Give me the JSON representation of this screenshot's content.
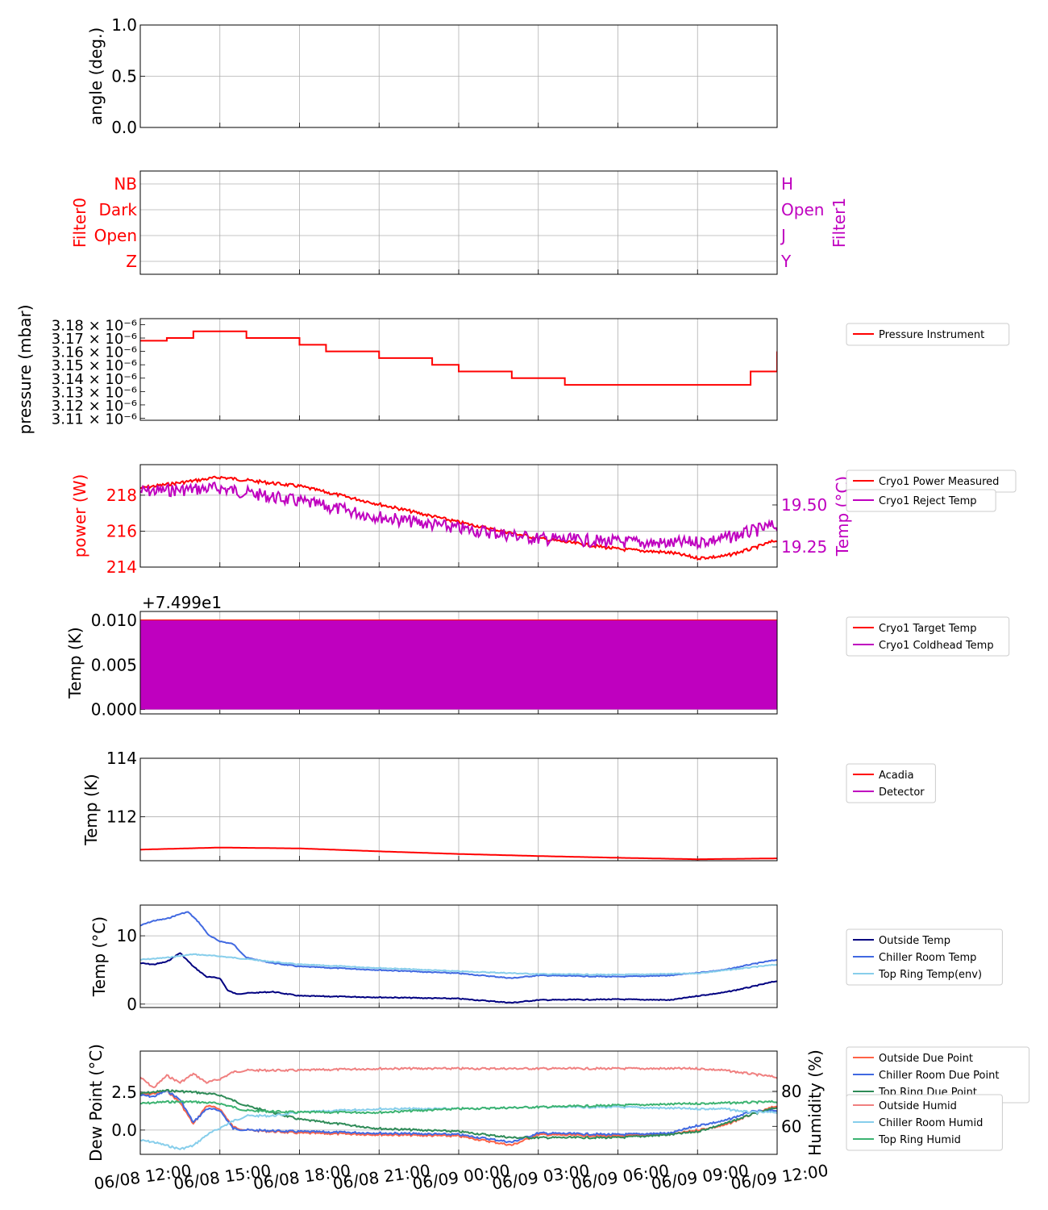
{
  "figure": {
    "x_ticks": [
      "06/08 12:00",
      "06/08 15:00",
      "06/08 18:00",
      "06/08 21:00",
      "06/09 00:00",
      "06/09 03:00",
      "06/09 06:00",
      "06/09 09:00",
      "06/09 12:00"
    ]
  },
  "chart_data": [
    {
      "type": "line",
      "panel": "angle",
      "ylabel": "angle (deg.)",
      "ylim": [
        0,
        1
      ],
      "yticks": [
        "0.0",
        "0.5",
        "1.0"
      ],
      "grid": true,
      "series": []
    },
    {
      "type": "line",
      "panel": "filters",
      "ylabel": "Filter0",
      "y2label": "Filter1",
      "yticks": [
        "Z",
        "Open",
        "Dark",
        "NB"
      ],
      "y2ticks": [
        "Y",
        "J",
        "Open",
        "H"
      ],
      "colors": {
        "left": "#ff0000",
        "right": "#bf00bf"
      },
      "grid": true,
      "series": []
    },
    {
      "type": "line",
      "panel": "pressure",
      "ylabel": "pressure (mbar)",
      "yticks": [
        "3.11 × 10⁻⁶",
        "3.12 × 10⁻⁶",
        "3.13 × 10⁻⁶",
        "3.14 × 10⁻⁶",
        "3.15 × 10⁻⁶",
        "3.16 × 10⁻⁶",
        "3.17 × 10⁻⁶",
        "3.18 × 10⁻⁶"
      ],
      "ylim": [
        3.1085,
        3.1845
      ],
      "legend": "right",
      "series": [
        {
          "name": "Pressure Instrument",
          "color": "#ff0000",
          "style": "step",
          "x_hours": [
            0,
            1,
            2,
            3,
            4,
            5,
            6,
            7,
            8,
            9,
            10,
            11,
            12,
            13,
            14,
            15,
            16,
            17,
            18,
            19,
            20,
            21,
            22,
            23,
            24
          ],
          "values": [
            3.168,
            3.17,
            3.175,
            3.175,
            3.17,
            3.17,
            3.165,
            3.16,
            3.16,
            3.155,
            3.155,
            3.15,
            3.145,
            3.145,
            3.14,
            3.14,
            3.135,
            3.135,
            3.135,
            3.135,
            3.135,
            3.135,
            3.135,
            3.145,
            3.16
          ]
        }
      ]
    },
    {
      "type": "line",
      "panel": "cryo-power",
      "ylabel": "power (W)",
      "y2label": "Temp (°C)",
      "yticks": [
        "214",
        "216",
        "218"
      ],
      "y2ticks": [
        "19.25",
        "19.50"
      ],
      "ylim": [
        214,
        219.7
      ],
      "y2lim": [
        19.13,
        19.74
      ],
      "legend": "right",
      "series": [
        {
          "name": "Cryo1 Power Measured",
          "color": "#ff0000",
          "axis": "left",
          "x_hours": [
            0,
            3,
            6,
            9,
            12,
            15,
            18,
            20,
            21,
            22,
            23,
            24
          ],
          "values": [
            218.4,
            219.0,
            218.5,
            217.5,
            216.5,
            215.6,
            215.0,
            214.8,
            214.5,
            214.6,
            215.0,
            215.5
          ]
        },
        {
          "name": "Cryo1 Reject Temp",
          "color": "#bf00bf",
          "axis": "right",
          "x_hours": [
            0,
            3,
            6,
            9,
            12,
            15,
            18,
            20,
            21,
            22,
            23,
            24
          ],
          "values": [
            19.58,
            19.6,
            19.52,
            19.43,
            19.36,
            19.3,
            19.28,
            19.27,
            19.28,
            19.3,
            19.34,
            19.38
          ]
        }
      ]
    },
    {
      "type": "line",
      "panel": "cryo-temp",
      "ylabel": "Temp (K)",
      "offset_label": "+7.499e1",
      "yticks": [
        "0.000",
        "0.005",
        "0.010"
      ],
      "ylim": [
        -0.0005,
        0.011
      ],
      "legend": "right",
      "series": [
        {
          "name": "Cryo1 Target Temp",
          "color": "#ff0000",
          "x_hours": [
            0,
            24
          ],
          "values": [
            0.01,
            0.01
          ]
        },
        {
          "name": "Cryo1 Coldhead Temp",
          "color": "#bf00bf",
          "style": "oscillating 0.000–0.010",
          "x_hours": [
            0,
            24
          ],
          "values_min": [
            0.0,
            0.0
          ],
          "values_max": [
            0.01,
            0.01
          ]
        }
      ]
    },
    {
      "type": "line",
      "panel": "detector",
      "ylabel": "Temp (K)",
      "yticks": [
        "112",
        "114"
      ],
      "ylim": [
        110.5,
        114
      ],
      "legend": "right",
      "series": [
        {
          "name": "Acadia",
          "color": "#ff0000",
          "x_hours": [
            0,
            3,
            6,
            9,
            12,
            15,
            18,
            21,
            24
          ],
          "values": [
            110.88,
            110.95,
            110.92,
            110.82,
            110.73,
            110.66,
            110.6,
            110.55,
            110.58
          ]
        },
        {
          "name": "Detector",
          "color": "#bf00bf",
          "x_hours": [],
          "values": []
        }
      ]
    },
    {
      "type": "line",
      "panel": "environment",
      "ylabel": "Temp (°C)",
      "yticks": [
        "0",
        "10"
      ],
      "ylim": [
        -0.5,
        14.5
      ],
      "legend": "right",
      "series": [
        {
          "name": "Outside Temp",
          "color": "#000080",
          "x_hours": [
            0,
            0.5,
            1,
            1.5,
            2,
            2.5,
            3,
            3.3,
            3.6,
            4,
            5,
            6,
            9,
            12,
            14,
            15,
            18,
            20,
            21,
            22,
            23,
            24
          ],
          "values": [
            6,
            5.8,
            6.2,
            7.5,
            5.5,
            4,
            3.8,
            2,
            1.5,
            1.6,
            1.8,
            1.2,
            1.0,
            0.8,
            0.2,
            0.6,
            0.7,
            0.6,
            1.2,
            1.7,
            2.5,
            3.4
          ]
        },
        {
          "name": "Chiller Room Temp",
          "color": "#4169e1",
          "x_hours": [
            0,
            0.5,
            1,
            1.5,
            1.8,
            2.2,
            2.6,
            3,
            3.5,
            4,
            5,
            6,
            9,
            12,
            14,
            15,
            18,
            20,
            21,
            22,
            23,
            24
          ],
          "values": [
            11.5,
            12.2,
            12.5,
            13.2,
            13.5,
            12.0,
            10.0,
            9.2,
            8.8,
            6.8,
            6.0,
            5.5,
            5.0,
            4.5,
            3.8,
            4.2,
            4.0,
            4.2,
            4.6,
            5.0,
            5.8,
            6.5
          ]
        },
        {
          "name": "Top Ring Temp(env)",
          "color": "#87ceeb",
          "x_hours": [
            0,
            1,
            2,
            3,
            4,
            6,
            9,
            12,
            15,
            18,
            21,
            24
          ],
          "values": [
            6.5,
            6.8,
            7.3,
            7.0,
            6.6,
            5.8,
            5.3,
            4.8,
            4.4,
            4.3,
            4.5,
            5.8
          ]
        }
      ]
    },
    {
      "type": "line",
      "panel": "dew-point",
      "ylabel": "Dew Point (°C)",
      "y2label": "Humidity (%)",
      "yticks": [
        "0.0",
        "2.5"
      ],
      "y2ticks": [
        "60",
        "80"
      ],
      "ylim": [
        -1.6,
        5.2
      ],
      "y2lim": [
        44,
        103
      ],
      "legend": "right",
      "series": [
        {
          "name": "Outside Due Point",
          "color": "#ff6347",
          "axis": "left",
          "x_hours": [
            0,
            0.5,
            1,
            1.5,
            2,
            2.5,
            3,
            3.5,
            4,
            6,
            9,
            12,
            14,
            15,
            18,
            20,
            21,
            22,
            23,
            24
          ],
          "values": [
            2.3,
            2.4,
            2.6,
            1.8,
            0.4,
            1.6,
            1.4,
            0.2,
            0.0,
            -0.2,
            -0.3,
            -0.4,
            -1.0,
            -0.3,
            -0.4,
            -0.3,
            0.0,
            0.3,
            1.0,
            1.6
          ]
        },
        {
          "name": "Chiller Room Due Point",
          "color": "#4169e1",
          "axis": "left",
          "x_hours": [
            0,
            0.5,
            1,
            1.5,
            2,
            2.5,
            3,
            3.5,
            4,
            6,
            9,
            12,
            14,
            15,
            18,
            20,
            21,
            22,
            23,
            24
          ],
          "values": [
            2.3,
            2.2,
            2.6,
            2.0,
            0.5,
            1.4,
            1.3,
            0.1,
            0.0,
            -0.1,
            -0.2,
            -0.3,
            -0.8,
            -0.2,
            -0.3,
            -0.2,
            0.3,
            0.6,
            1.2,
            1.3
          ]
        },
        {
          "name": "Top Ring Due Point",
          "color": "#2e8b57",
          "axis": "left",
          "x_hours": [
            0,
            1,
            2,
            3,
            4,
            6,
            9,
            12,
            14,
            15,
            18,
            20,
            21,
            22,
            23,
            24
          ],
          "values": [
            2.4,
            2.6,
            2.5,
            2.3,
            1.6,
            0.7,
            0.1,
            -0.1,
            -0.5,
            -0.5,
            -0.5,
            -0.3,
            -0.1,
            0.4,
            1.0,
            1.5
          ]
        },
        {
          "name": "Outside Humid",
          "color": "#f08080",
          "axis": "right",
          "x_hours": [
            0,
            0.5,
            1,
            1.5,
            2,
            2.5,
            3,
            3.5,
            4,
            6,
            9,
            12,
            15,
            18,
            21,
            22,
            23,
            24
          ],
          "values": [
            88,
            82,
            89,
            85,
            90,
            85,
            87,
            91,
            92,
            92,
            93,
            93,
            93,
            93,
            93,
            92,
            90,
            88
          ]
        },
        {
          "name": "Chiller Room Humid",
          "color": "#87ceeb",
          "axis": "right",
          "x_hours": [
            0,
            0.5,
            1,
            1.5,
            2,
            2.5,
            3,
            3.5,
            4,
            5,
            6,
            9,
            12,
            15,
            18,
            21,
            22,
            23,
            24
          ],
          "values": [
            52,
            51,
            49,
            47,
            49,
            55,
            59,
            63,
            66,
            66,
            68,
            70,
            70,
            71,
            71,
            70,
            70,
            68,
            68
          ]
        },
        {
          "name": "Top Ring Humid",
          "color": "#3cb371",
          "axis": "right",
          "x_hours": [
            0,
            1,
            2,
            3,
            4,
            6,
            9,
            12,
            15,
            18,
            21,
            24
          ],
          "values": [
            73,
            74,
            74,
            73,
            69,
            68,
            68,
            70,
            71,
            72,
            73,
            74
          ]
        }
      ]
    }
  ]
}
